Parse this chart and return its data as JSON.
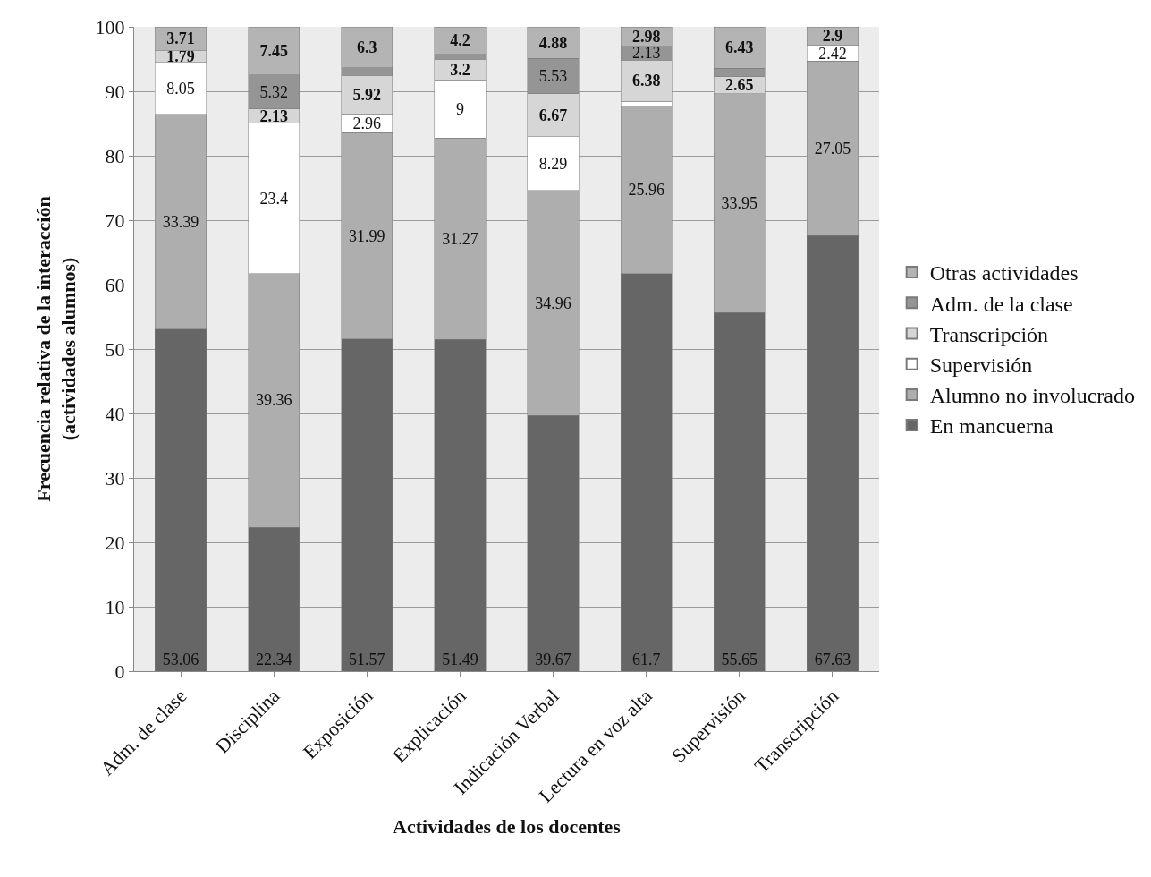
{
  "chart_data": {
    "type": "bar",
    "stacked": true,
    "xlabel": "Actividades de los docentes",
    "ylabel": "Frecuencia relativa de la interacción\n(actividades alumnos)",
    "categories": [
      "Adm. de clase",
      "Disciplina",
      "Exposición",
      "Explicación",
      "Indicación Verbal",
      "Lectura en voz alta",
      "Supervisión",
      "Transcripción"
    ],
    "series": [
      {
        "name": "En mancuerna",
        "color": "#666666",
        "values": [
          53.06,
          22.34,
          51.57,
          51.49,
          39.67,
          61.7,
          55.65,
          67.63
        ],
        "value_labels": [
          "53.06",
          "22.34",
          "51.57",
          "51.49",
          "39.67",
          "61.7",
          "55.65",
          "67.63"
        ]
      },
      {
        "name": "Alumno no involucrado",
        "color": "#aeaeae",
        "values": [
          33.39,
          39.36,
          31.99,
          31.27,
          34.96,
          25.96,
          33.95,
          27.05
        ],
        "value_labels": [
          "33.39",
          "39.36",
          "31.99",
          "31.27",
          "34.96",
          "25.96",
          "33.95",
          "27.05"
        ]
      },
      {
        "name": "Supervisión",
        "color": "#ffffff",
        "values": [
          8.05,
          23.4,
          2.96,
          9,
          8.29,
          0.8,
          null,
          2.42
        ],
        "value_labels": [
          "8.05",
          "23.4",
          "2.96",
          "9",
          "8.29",
          null,
          null,
          "2.42"
        ]
      },
      {
        "name": "Transcripción",
        "color": "#d6d6d6",
        "values": [
          1.79,
          2.13,
          5.92,
          3.2,
          6.67,
          6.38,
          2.65,
          null
        ],
        "value_labels": [
          "1.79",
          "2.13",
          "5.92",
          "3.2",
          "6.67",
          "6.38",
          "2.65",
          null
        ]
      },
      {
        "name": "Adm. de la clase",
        "color": "#959595",
        "values": [
          null,
          5.32,
          1.2,
          0.8,
          5.53,
          2.13,
          1.3,
          null
        ],
        "value_labels": [
          null,
          "5.32",
          null,
          null,
          "5.53",
          "2.13",
          null,
          null
        ]
      },
      {
        "name": "Otras actividades",
        "color": "#b4b4b4",
        "values": [
          3.71,
          7.45,
          6.3,
          4.2,
          4.88,
          2.98,
          6.43,
          2.9
        ],
        "value_labels": [
          "3.71",
          "7.45",
          "6.3",
          "4.2",
          "4.88",
          "2.98",
          "6.43",
          "2.9"
        ]
      }
    ],
    "ylim": [
      0,
      100
    ],
    "yticks": [
      0,
      10,
      20,
      30,
      40,
      50,
      60,
      70,
      80,
      90,
      100
    ],
    "grid": "y",
    "legend": "right"
  }
}
